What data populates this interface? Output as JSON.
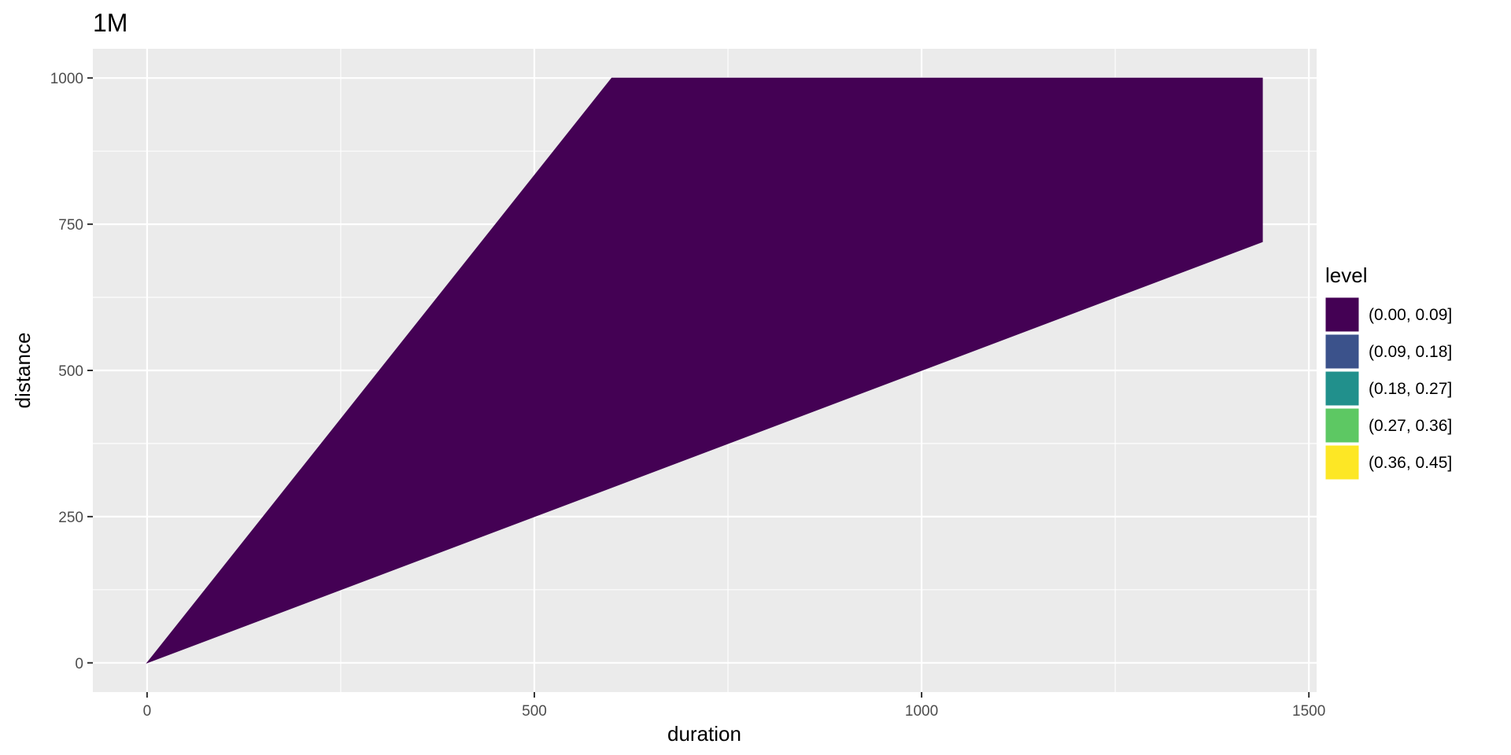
{
  "chart_data": {
    "type": "area",
    "title": "1M",
    "xlabel": "duration",
    "ylabel": "distance",
    "xlim": [
      -70,
      1510
    ],
    "ylim": [
      -50,
      1050
    ],
    "x_ticks": [
      0,
      500,
      1000,
      1500
    ],
    "x_tick_labels": [
      "0",
      "500",
      "1000",
      "1500"
    ],
    "y_ticks": [
      0,
      250,
      500,
      750,
      1000
    ],
    "y_tick_labels": [
      "0",
      "250",
      "500",
      "750",
      "1000"
    ],
    "grid": true,
    "legend_position": "right",
    "legend": {
      "title": "level",
      "entries": [
        {
          "label": "(0.00, 0.09]",
          "color": "#440154"
        },
        {
          "label": "(0.09, 0.18]",
          "color": "#3B528B"
        },
        {
          "label": "(0.18, 0.27]",
          "color": "#21908C"
        },
        {
          "label": "(0.27, 0.36]",
          "color": "#5DC863"
        },
        {
          "label": "(0.36, 0.45]",
          "color": "#FDE725"
        }
      ]
    },
    "regions": [
      {
        "level": "(0.00, 0.09]",
        "color": "#440154",
        "polygon": [
          {
            "x": 0,
            "y": 0
          },
          {
            "x": 600,
            "y": 1000
          },
          {
            "x": 1440,
            "y": 1000
          },
          {
            "x": 1440,
            "y": 720
          }
        ]
      }
    ]
  }
}
